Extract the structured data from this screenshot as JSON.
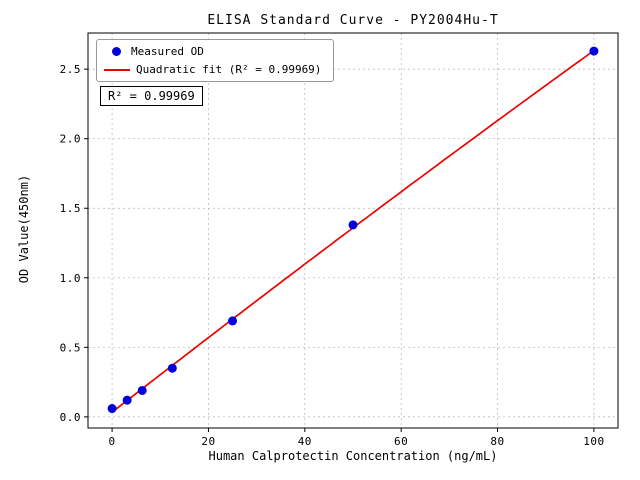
{
  "window": {
    "background": "#ffffff"
  },
  "chart_data": {
    "type": "scatter",
    "title": "ELISA Standard Curve - PY2004Hu-T",
    "xlabel": "Human Calprotectin Concentration (ng/mL)",
    "ylabel": "OD Value(450nm)",
    "xlim": [
      -5,
      105
    ],
    "ylim": [
      -0.08,
      2.76
    ],
    "x_ticks": [
      0,
      20,
      40,
      60,
      80,
      100
    ],
    "x_tick_labels": [
      "0",
      "20",
      "40",
      "60",
      "80",
      "100"
    ],
    "y_ticks": [
      0,
      0.5,
      1,
      1.5,
      2,
      2.5
    ],
    "y_tick_labels": [
      "0.0",
      "0.5",
      "1.0",
      "1.5",
      "2.0",
      "2.5"
    ],
    "grid": true,
    "grid_style": "dashed",
    "grid_color": "#b3b3b3",
    "series": [
      {
        "name": "Measured OD",
        "type": "scatter",
        "marker": "circle",
        "color": "#0000dd",
        "x": [
          0,
          3.125,
          6.25,
          12.5,
          25,
          50,
          100
        ],
        "y": [
          0.06,
          0.12,
          0.19,
          0.35,
          0.69,
          1.38,
          2.63
        ]
      },
      {
        "name": "Quadratic fit",
        "type": "line",
        "color": "#ee0000",
        "fit": "quadratic",
        "x_range": [
          0,
          100
        ]
      }
    ],
    "legend": {
      "position": "upper left",
      "entries": [
        {
          "label": "Measured OD",
          "marker": "dot",
          "color": "#0000dd"
        },
        {
          "label": "Quadratic fit (R² = 0.99969)",
          "marker": "line",
          "color": "#ee0000"
        }
      ]
    },
    "annotation": {
      "text": "R² = 0.99969"
    }
  }
}
